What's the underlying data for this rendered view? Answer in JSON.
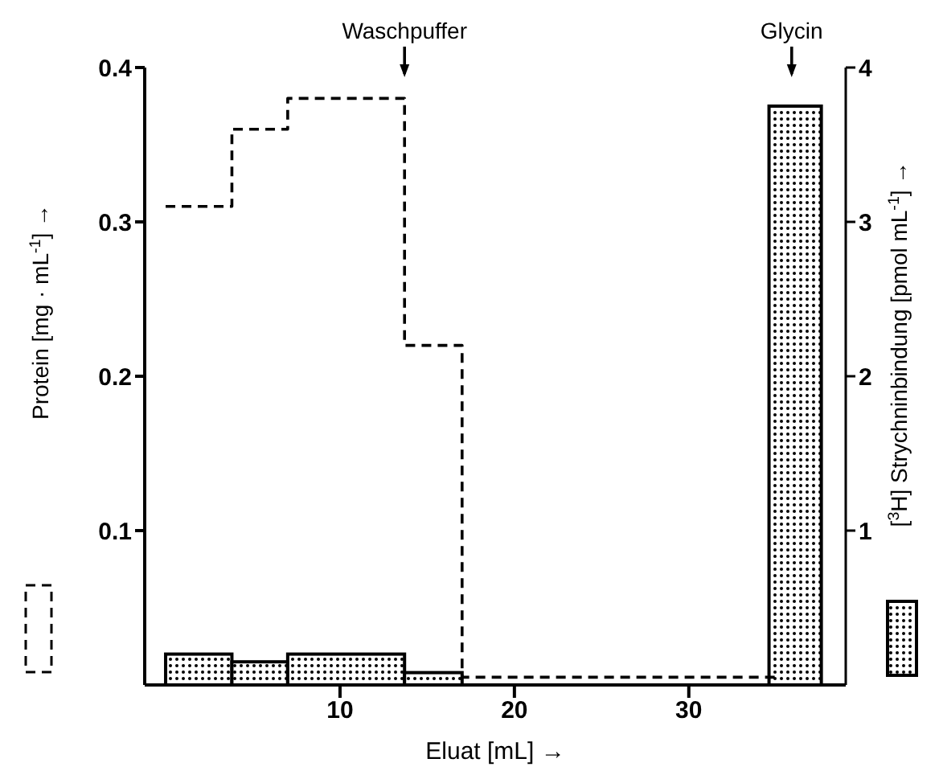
{
  "chart_data": {
    "type": "histogram",
    "xlabel": "Eluat [mL] →",
    "ylabel": "Protein [mg · mL$^{-1}$] →",
    "y2label": "[$^{3}$H] Strychninbindung [pmol mL$^{-1}$] →",
    "xlim": [
      -1.2,
      39
    ],
    "xticks": [
      10,
      20,
      30
    ],
    "ylim": [
      0,
      0.4
    ],
    "yticks": [
      0.1,
      0.2,
      0.3,
      0.4
    ],
    "y2lim": [
      0,
      4
    ],
    "y2ticks": [
      1,
      2,
      3,
      4
    ],
    "series": [
      {
        "type": "step",
        "color": "#000000",
        "line_style": "dashed",
        "axis": "y",
        "x": [
          0,
          3.8,
          7,
          13.7,
          17,
          35
        ],
        "values": [
          0.31,
          0.36,
          0.38,
          0.22,
          0.005,
          0.005
        ]
      },
      {
        "color": "#000000",
        "axis": "y2",
        "bins": [
          0,
          3.8,
          7,
          13.7,
          17,
          34.6,
          37.6
        ],
        "values": [
          0.2,
          0.15,
          0.2,
          0.08,
          0,
          3.75
        ]
      }
    ],
    "annotations": [
      {
        "text": "Waschpuffer",
        "x": 13.7
      },
      {
        "text": "Glycin",
        "x": 35.9
      }
    ],
    "marker": "none"
  }
}
